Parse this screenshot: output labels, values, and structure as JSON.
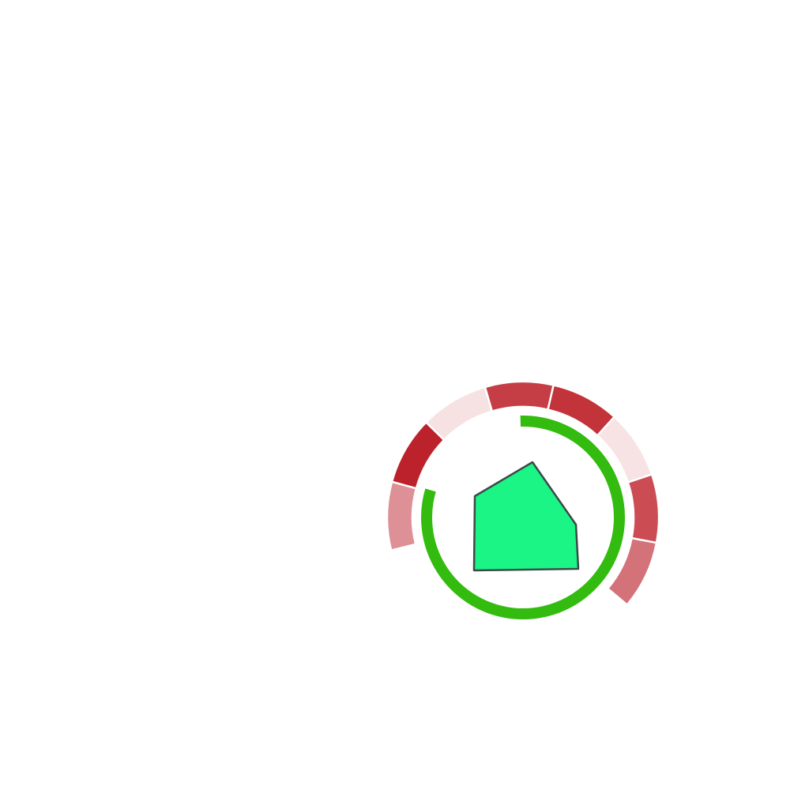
{
  "colors": {
    "background": "#ffffff",
    "shape_fill": "#1af585",
    "shape_stroke": "#3c4a48",
    "progress_ring": "#33bb0f",
    "segment_gap": "#ffffff"
  },
  "icons": {
    "center_shape": "pentagon-house-icon"
  },
  "progress_ring": {
    "value": 0.8
  },
  "segments": [
    {
      "color": "#dd9096"
    },
    {
      "color": "#bc222b"
    },
    {
      "color": "#f7e2e3"
    },
    {
      "color": "#c63e45"
    },
    {
      "color": "#c2333a"
    },
    {
      "color": "#f7e3e4"
    },
    {
      "color": "#cb4c53"
    },
    {
      "color": "#d4727a"
    }
  ]
}
